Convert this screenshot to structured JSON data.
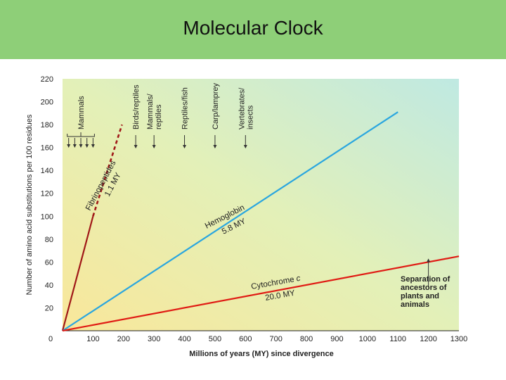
{
  "slide": {
    "title": "Molecular Clock"
  },
  "colors": {
    "header_bg": "#8ecf78",
    "fibrinopeptides": "#a01818",
    "hemoglobin": "#2aa6df",
    "cytochrome": "#e01b14",
    "event_marker": "#333333"
  },
  "chart_data": {
    "type": "line",
    "xlabel": "Millions of years (MY) since divergence",
    "ylabel": "Number of amino acid substitutions per 100 residues",
    "xlim": [
      0,
      1300
    ],
    "ylim": [
      0,
      220
    ],
    "x_ticks": [
      0,
      100,
      200,
      300,
      400,
      500,
      600,
      700,
      800,
      900,
      1000,
      1100,
      1200,
      1300
    ],
    "y_ticks": [
      20,
      40,
      60,
      80,
      100,
      120,
      140,
      160,
      180,
      200,
      220
    ],
    "origin_label": "0",
    "grid": false,
    "series": [
      {
        "key": "fibrinopeptides",
        "name": "Fibrinopeptides",
        "rate": "1.1 MY",
        "x": [
          0,
          100,
          195
        ],
        "y": [
          0,
          100,
          180
        ],
        "dashed_after_x": 100,
        "color": "#a01818"
      },
      {
        "key": "hemoglobin",
        "name": "Hemoglobin",
        "rate": "5.8 MY",
        "x": [
          0,
          1100
        ],
        "y": [
          0,
          191
        ],
        "color": "#2aa6df"
      },
      {
        "key": "cytochrome",
        "name": "Cytochrome",
        "name_suffix": "c",
        "rate": "20.0 MY",
        "x": [
          0,
          1300
        ],
        "y": [
          0,
          65
        ],
        "color": "#e01b14"
      }
    ],
    "annotations": {
      "mammals": {
        "label": "Mammals",
        "arrow_x": [
          20,
          40,
          60,
          80,
          100
        ]
      },
      "events": [
        {
          "label": "Birds/reptiles",
          "x": 240
        },
        {
          "label": "Mammals/\nreptiles",
          "x": 300
        },
        {
          "label": "Reptiles/fish",
          "x": 400
        },
        {
          "label": "Carp/lamprey",
          "x": 500
        },
        {
          "label": "Vertebrates/\ninsects",
          "x": 600
        }
      ],
      "separation": {
        "label": "Separation of\nancestors of\nplants and\nanimals",
        "x": 1200
      }
    }
  }
}
